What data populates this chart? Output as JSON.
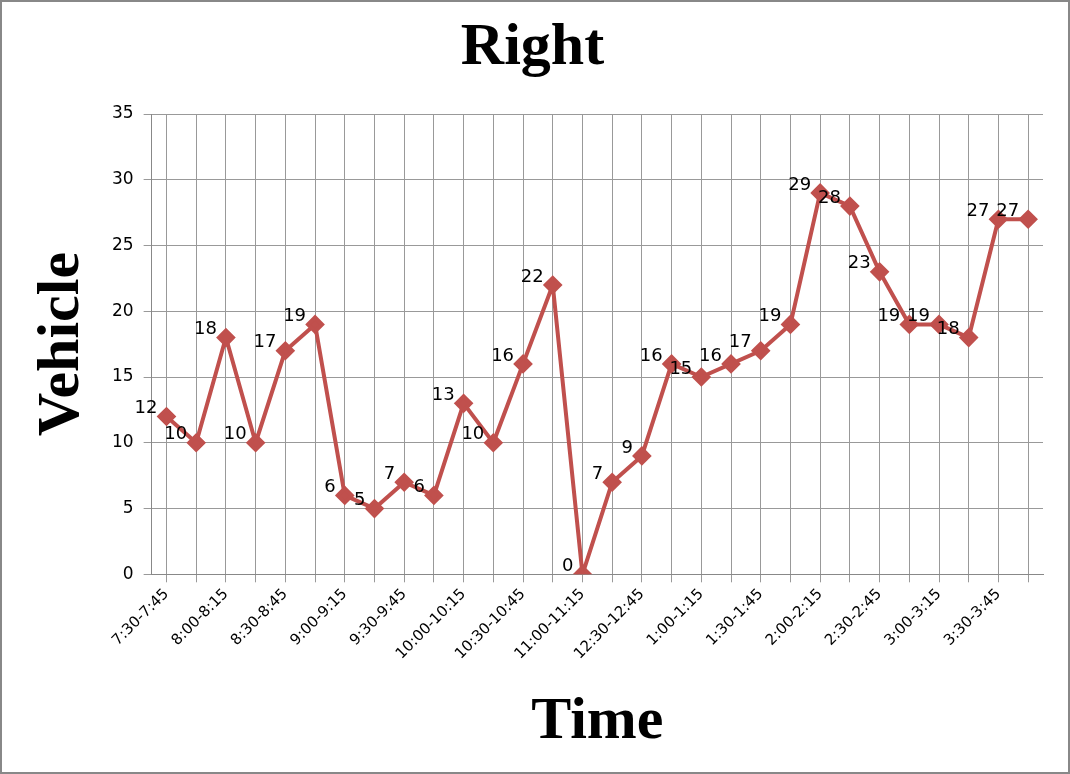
{
  "chart_data": {
    "type": "line",
    "title": "Right",
    "xlabel": "Time",
    "ylabel": "Vehicle",
    "categories": [
      "7:30-7:45",
      null,
      "8:00-8:15",
      null,
      "8:30-8:45",
      null,
      "9:00-9:15",
      null,
      "9:30-9:45",
      null,
      "10:00-10:15",
      null,
      "10:30-10:45",
      null,
      "11:00-11:15",
      null,
      "12:30-12:45",
      null,
      "1:00-1:15",
      null,
      "1:30-1:45",
      null,
      "2:00-2:15",
      null,
      "2:30-2:45",
      null,
      "3:00-3:15",
      null,
      "3:30-3:45",
      null
    ],
    "series": [
      {
        "color": "#c0504d",
        "values": [
          12,
          10,
          18,
          10,
          17,
          19,
          6,
          5,
          7,
          6,
          13,
          10,
          16,
          22,
          0,
          7,
          9,
          16,
          15,
          16,
          17,
          19,
          29,
          28,
          23,
          19,
          19,
          18,
          27,
          27
        ]
      }
    ],
    "ylim": [
      0,
      35
    ],
    "yticks": [
      0,
      5,
      10,
      15,
      20,
      25,
      30,
      35
    ],
    "grid": true,
    "legend": false,
    "marker": "diamond",
    "line_style": "solid",
    "data_labels": true
  }
}
